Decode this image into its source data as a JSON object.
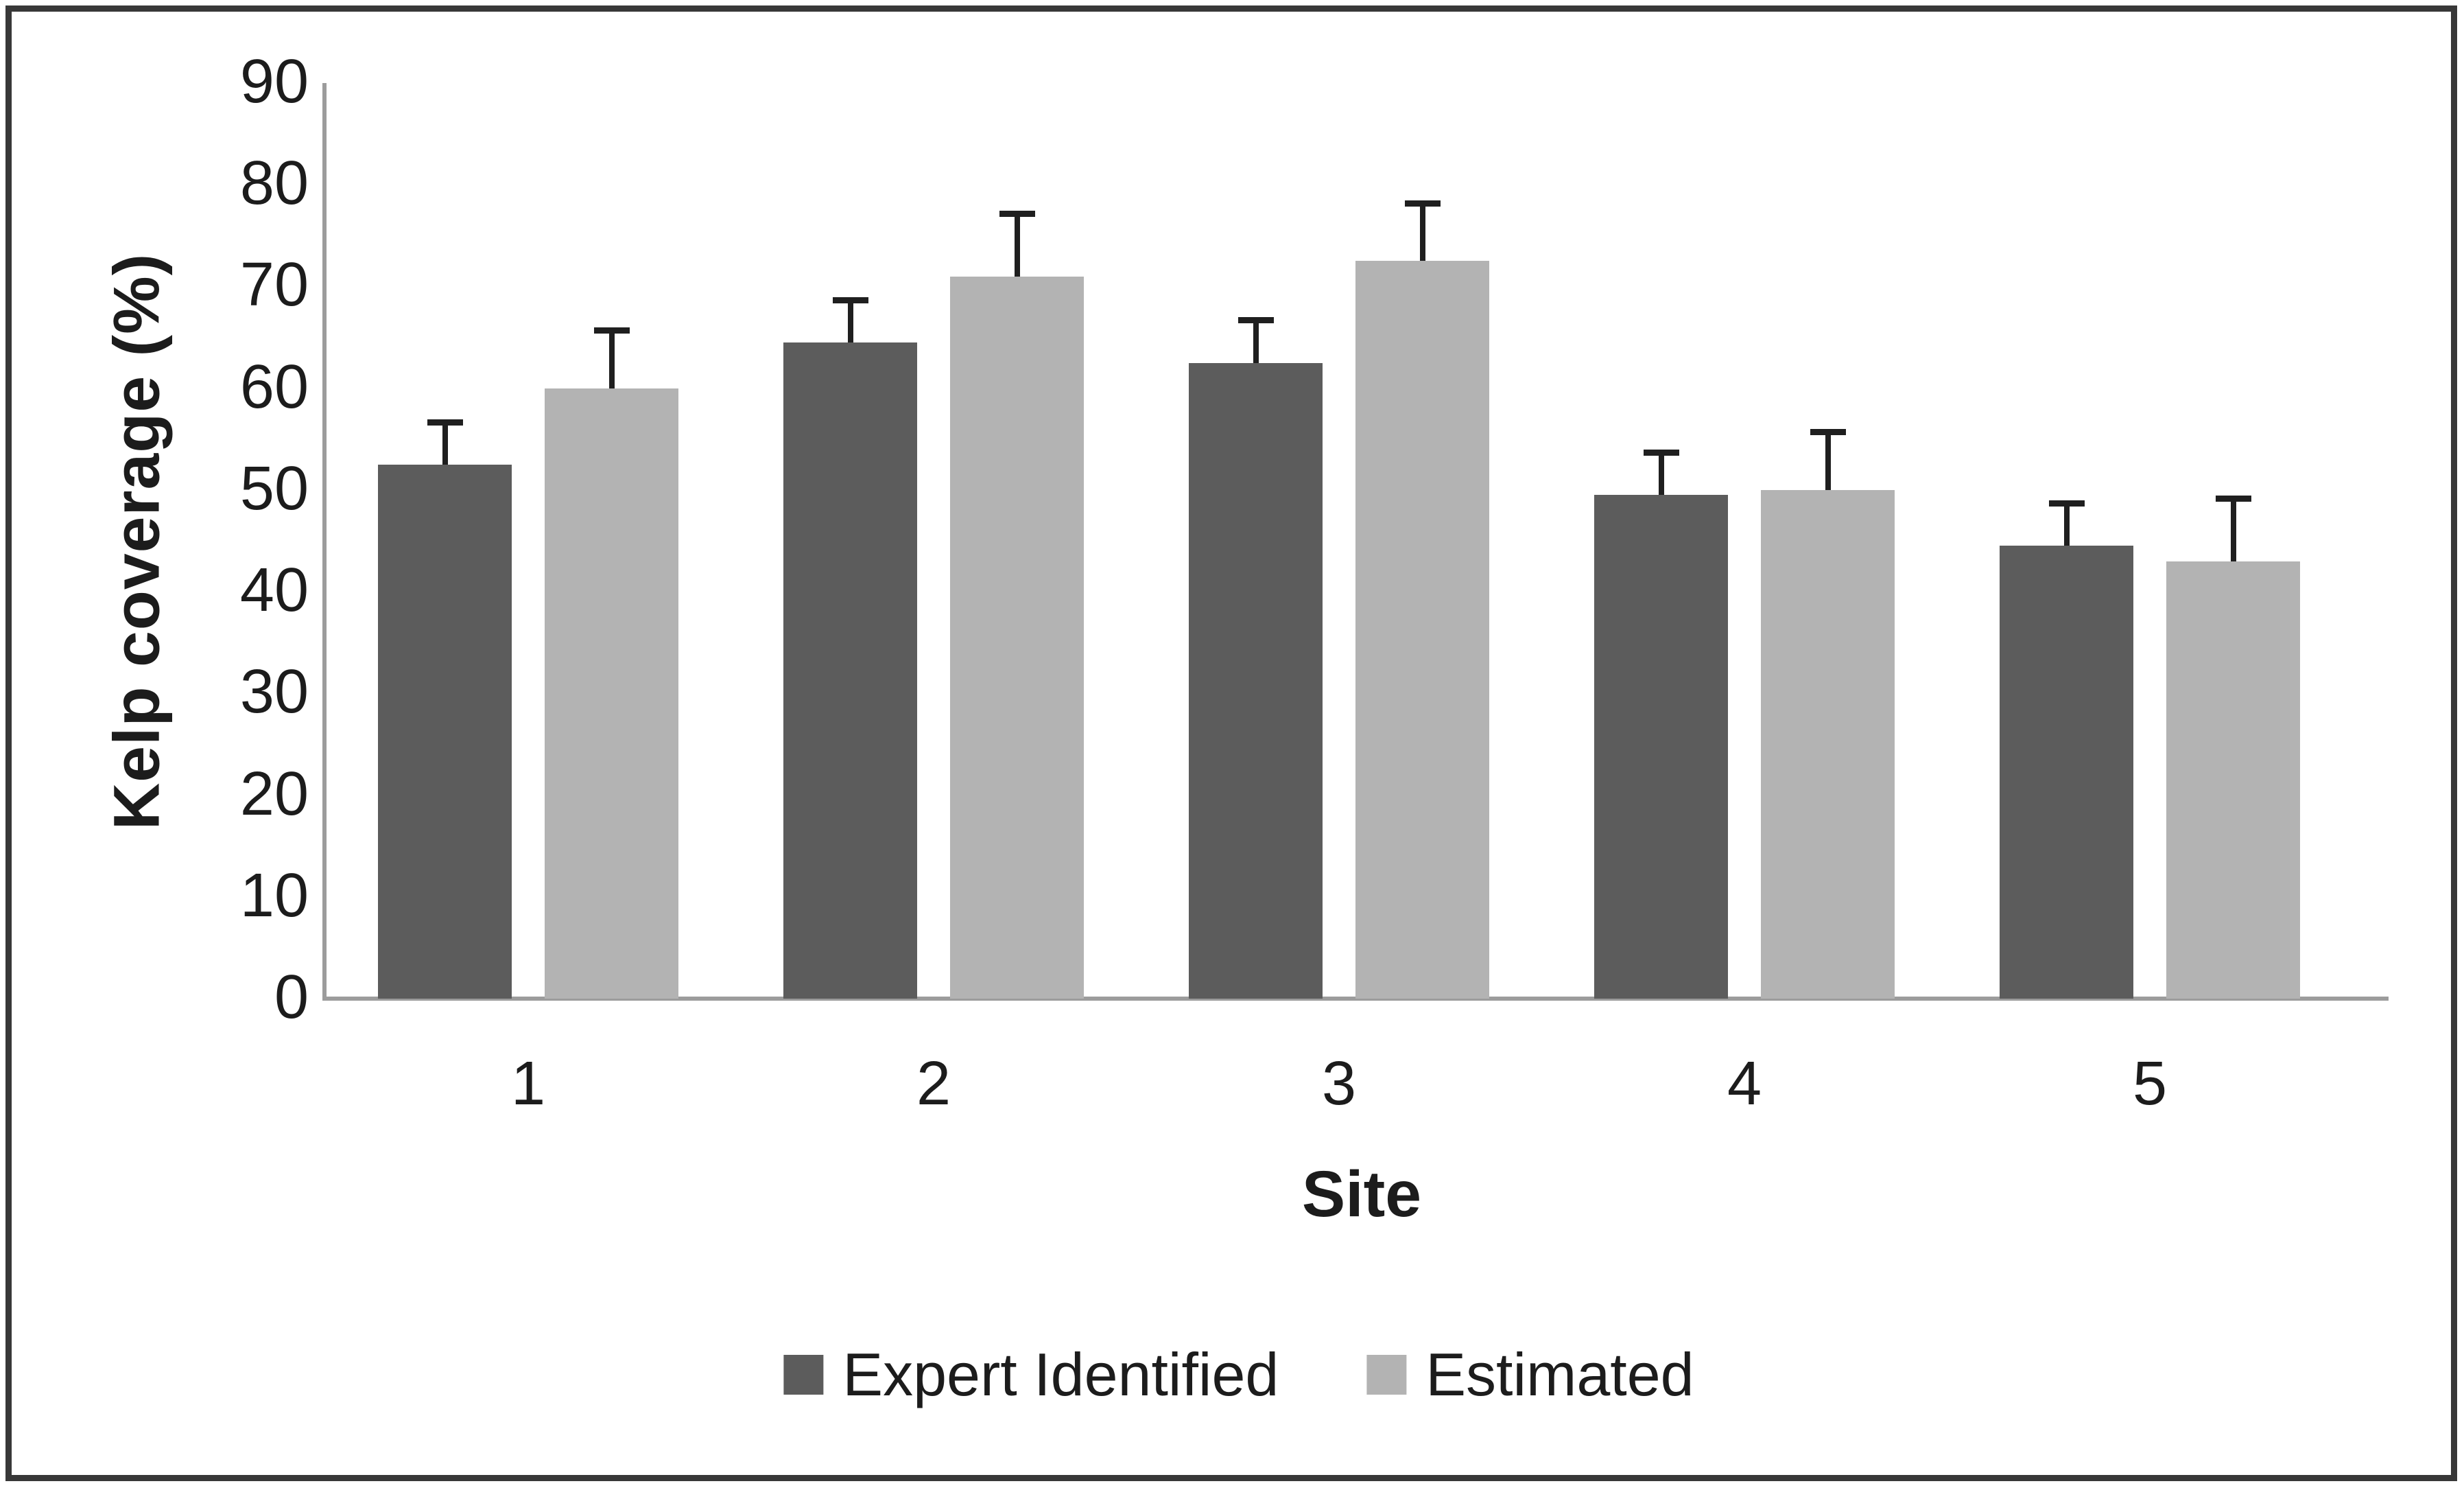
{
  "figure": {
    "border_color": "#383838",
    "background_color": "#ffffff"
  },
  "chart_data": {
    "type": "bar",
    "title": "",
    "xlabel": "Site",
    "ylabel": "Kelp coverage (%)",
    "categories": [
      "1",
      "2",
      "3",
      "4",
      "5"
    ],
    "series": [
      {
        "name": "Expert Identified",
        "color": "#5c5c5c",
        "values": [
          52.5,
          64.5,
          62.5,
          49.5,
          44.5
        ],
        "error_bars": [
          4,
          4,
          4,
          4,
          4
        ]
      },
      {
        "name": "Estimated",
        "color": "#b3b3b3",
        "values": [
          60,
          71,
          72.5,
          50,
          43
        ],
        "error_bars": [
          5.5,
          6,
          5.5,
          5.5,
          6
        ]
      }
    ],
    "ylim": [
      0,
      90
    ],
    "yticks": [
      0,
      10,
      20,
      30,
      40,
      50,
      60,
      70,
      80,
      90
    ],
    "grid": false,
    "legend_position": "bottom",
    "error_bar_style": "plus-one-sd-cap",
    "error_bar_color": "#1f1f1f",
    "axis_color": "#9c9c9c",
    "text_color": "#1c1c1c"
  }
}
